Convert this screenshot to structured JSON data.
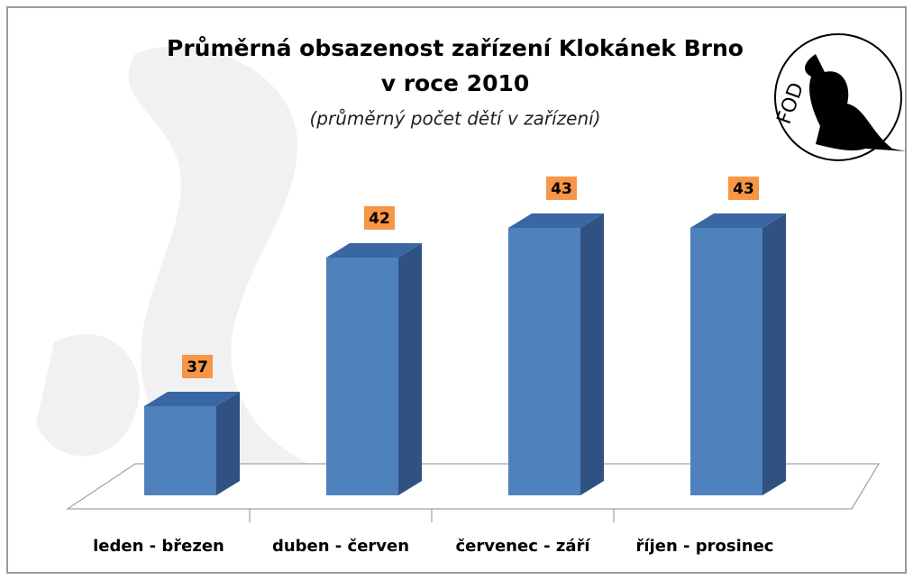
{
  "chart_data": {
    "type": "bar",
    "title_lines": [
      "Průměrná obsazenost zařízení Klokánek Brno",
      "v roce 2010"
    ],
    "subtitle": "(průměrný počet dětí v zařízení)",
    "logo_text": "FOD",
    "categories": [
      "leden - březen",
      "duben - červen",
      "červenec - září",
      "říjen - prosinec"
    ],
    "values": [
      37,
      42,
      43,
      43
    ],
    "color": "#4f81bd",
    "label_color": "#f79646",
    "ylim": [
      34,
      44
    ]
  }
}
